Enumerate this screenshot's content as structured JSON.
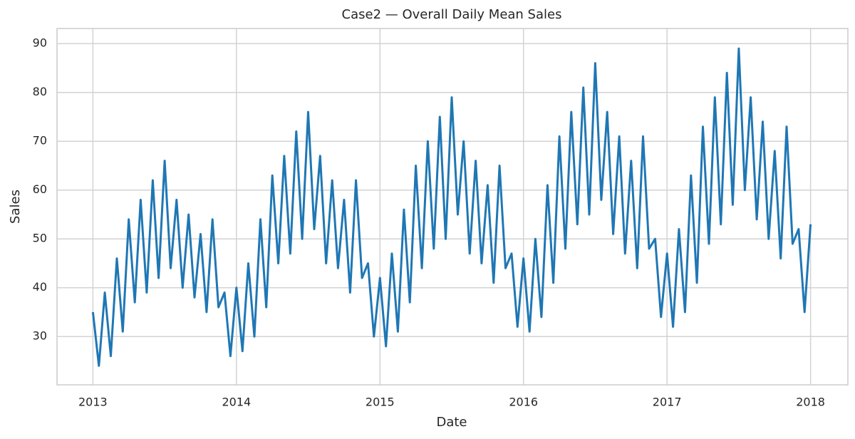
{
  "chart_data": {
    "type": "line",
    "title": "Case2 — Overall Daily Mean Sales",
    "xlabel": "Date",
    "ylabel": "Sales",
    "xlim": [
      2012.75,
      2018.26
    ],
    "ylim": [
      20.1,
      93.1
    ],
    "xticks": [
      2013,
      2014,
      2015,
      2016,
      2017,
      2018
    ],
    "yticks": [
      30,
      40,
      50,
      60,
      70,
      80,
      90
    ],
    "grid": true,
    "series": [
      {
        "name": "Sales",
        "color": "#1f77b4",
        "x": [
          2013.0,
          2013.042,
          2013.083,
          2013.125,
          2013.167,
          2013.208,
          2013.25,
          2013.292,
          2013.333,
          2013.375,
          2013.417,
          2013.458,
          2013.5,
          2013.542,
          2013.583,
          2013.625,
          2013.667,
          2013.708,
          2013.75,
          2013.792,
          2013.833,
          2013.875,
          2013.917,
          2013.958,
          2014.0,
          2014.042,
          2014.083,
          2014.125,
          2014.167,
          2014.208,
          2014.25,
          2014.292,
          2014.333,
          2014.375,
          2014.417,
          2014.458,
          2014.5,
          2014.542,
          2014.583,
          2014.625,
          2014.667,
          2014.708,
          2014.75,
          2014.792,
          2014.833,
          2014.875,
          2014.917,
          2014.958,
          2015.0,
          2015.042,
          2015.083,
          2015.125,
          2015.167,
          2015.208,
          2015.25,
          2015.292,
          2015.333,
          2015.375,
          2015.417,
          2015.458,
          2015.5,
          2015.542,
          2015.583,
          2015.625,
          2015.667,
          2015.708,
          2015.75,
          2015.792,
          2015.833,
          2015.875,
          2015.917,
          2015.958,
          2016.0,
          2016.042,
          2016.083,
          2016.125,
          2016.167,
          2016.208,
          2016.25,
          2016.292,
          2016.333,
          2016.375,
          2016.417,
          2016.458,
          2016.5,
          2016.542,
          2016.583,
          2016.625,
          2016.667,
          2016.708,
          2016.75,
          2016.792,
          2016.833,
          2016.875,
          2016.917,
          2016.958,
          2017.0,
          2017.042,
          2017.083,
          2017.125,
          2017.167,
          2017.208,
          2017.25,
          2017.292,
          2017.333,
          2017.375,
          2017.417,
          2017.458,
          2017.5,
          2017.542,
          2017.583,
          2017.625,
          2017.667,
          2017.708,
          2017.75,
          2017.792,
          2017.833,
          2017.875,
          2017.917,
          2017.958,
          2018.0
        ],
        "values": [
          35,
          24,
          39,
          26,
          46,
          31,
          54,
          37,
          58,
          39,
          62,
          42,
          66,
          44,
          58,
          40,
          55,
          38,
          51,
          35,
          54,
          36,
          39,
          26,
          40,
          27,
          45,
          30,
          54,
          36,
          63,
          45,
          67,
          47,
          72,
          50,
          76,
          52,
          67,
          45,
          62,
          44,
          58,
          39,
          62,
          42,
          45,
          30,
          42,
          28,
          47,
          31,
          56,
          37,
          65,
          44,
          70,
          48,
          75,
          50,
          79,
          55,
          70,
          47,
          66,
          45,
          61,
          41,
          65,
          44,
          47,
          32,
          46,
          31,
          50,
          34,
          61,
          41,
          71,
          48,
          76,
          53,
          81,
          55,
          86,
          58,
          76,
          51,
          71,
          47,
          66,
          44,
          71,
          48,
          50,
          34,
          47,
          32,
          52,
          35,
          63,
          41,
          73,
          49,
          79,
          53,
          84,
          57,
          89,
          60,
          79,
          54,
          74,
          50,
          68,
          46,
          73,
          49,
          52,
          35,
          53
        ]
      }
    ]
  }
}
